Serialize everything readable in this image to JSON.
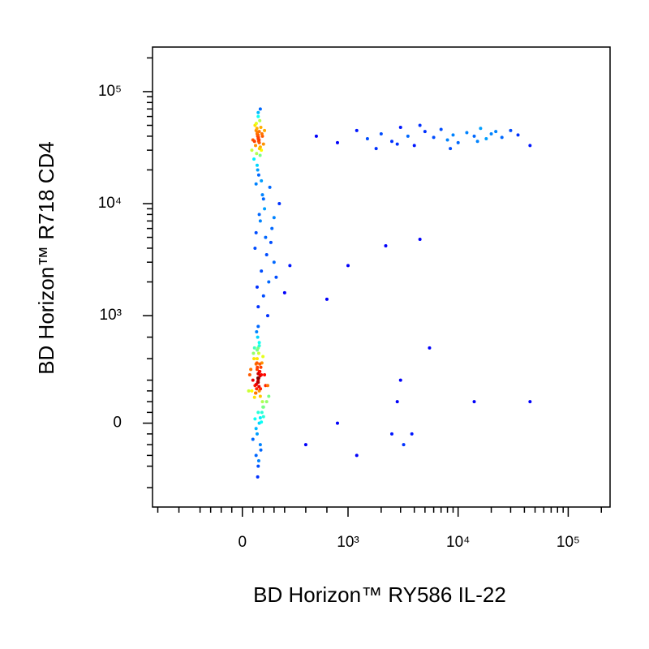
{
  "chart_data": {
    "type": "scatter",
    "x_label": "BD Horizon™ RY586 IL-22",
    "y_label": "BD Horizon™ R718 CD4",
    "xscale": "biexponential",
    "yscale": "biexponential",
    "xlim": [
      -850,
      240000
    ],
    "ylim": [
      -780,
      250000
    ],
    "xticks": [
      0,
      {
        "value": 1000,
        "label": "10³"
      },
      {
        "value": 10000,
        "label": "10⁴"
      },
      {
        "value": 100000,
        "label": "10⁵"
      }
    ],
    "yticks": [
      0,
      {
        "value": 1000,
        "label": "10³"
      },
      {
        "value": 10000,
        "label": "10⁴"
      },
      {
        "value": 100000,
        "label": "10⁵"
      }
    ],
    "xminorticks": [
      -800,
      -600,
      -400,
      -300,
      -200,
      -100,
      100,
      200,
      300,
      400,
      600,
      800,
      2000,
      3000,
      4000,
      5000,
      6000,
      7000,
      8000,
      9000,
      20000,
      30000,
      40000,
      50000,
      60000,
      70000,
      80000,
      90000,
      200000
    ],
    "yminorticks": [
      -600,
      -400,
      -300,
      -200,
      -100,
      100,
      200,
      300,
      400,
      600,
      800,
      2000,
      3000,
      4000,
      5000,
      6000,
      7000,
      8000,
      9000,
      20000,
      30000,
      40000,
      50000,
      60000,
      70000,
      80000,
      90000,
      200000
    ],
    "colormap": "jet",
    "x": [
      150,
      120,
      180,
      160,
      140,
      170,
      130,
      190,
      110,
      200,
      155,
      145,
      165,
      135,
      175,
      125,
      185,
      115,
      195,
      150,
      160,
      140,
      170,
      130,
      100,
      210,
      90,
      220,
      80,
      230,
      150,
      155,
      145,
      160,
      140,
      165,
      135,
      170,
      130,
      175,
      60,
      240,
      70,
      250,
      150,
      148,
      152,
      158,
      142,
      162,
      138,
      168,
      132,
      172,
      128,
      105,
      195,
      115,
      185,
      150,
      145,
      155,
      150,
      140,
      160,
      120,
      180,
      100,
      200,
      150,
      150,
      140,
      160,
      130,
      170,
      120,
      180,
      145,
      155,
      135,
      165,
      125,
      175,
      110,
      190,
      150,
      140,
      160,
      100,
      200,
      152,
      148,
      158,
      142,
      162,
      138,
      168,
      132,
      90,
      210,
      150,
      155,
      145,
      170,
      130,
      115,
      185,
      150,
      200,
      250,
      180,
      300,
      120,
      220,
      280,
      160,
      350,
      190,
      260,
      140,
      230,
      320,
      170,
      210,
      400,
      130,
      270,
      240,
      180,
      300,
      450,
      200,
      700,
      900,
      1200,
      1500,
      2000,
      2500,
      3000,
      3500,
      4000,
      5000,
      6000,
      7000,
      8000,
      9000,
      10000,
      12000,
      14000,
      16000,
      18000,
      20000,
      22000,
      25000,
      30000,
      35000,
      45000,
      1800,
      2800,
      4500,
      8500,
      15000,
      2200,
      4500,
      1000,
      800,
      3000,
      5500,
      2800,
      14000,
      45000,
      2500,
      3200,
      1200,
      3800,
      600,
      900
    ],
    "y": [
      400,
      350,
      450,
      300,
      500,
      250,
      550,
      200,
      600,
      150,
      420,
      380,
      480,
      320,
      520,
      280,
      560,
      240,
      620,
      100,
      0,
      -100,
      50,
      -50,
      400,
      450,
      300,
      350,
      500,
      200,
      700,
      650,
      800,
      750,
      600,
      550,
      850,
      -200,
      -300,
      -250,
      300,
      350,
      450,
      250,
      380,
      420,
      460,
      340,
      520,
      480,
      560,
      440,
      360,
      320,
      280,
      650,
      150,
      700,
      100,
      -400,
      -500,
      -350,
      900,
      680,
      720,
      40,
      10,
      -150,
      60,
      460,
      38000,
      42000,
      35000,
      45000,
      32000,
      50000,
      30000,
      40000,
      36000,
      28000,
      55000,
      33000,
      48000,
      25000,
      40000,
      60000,
      22000,
      44000,
      37000,
      34000,
      39000,
      41000,
      37000,
      43000,
      31000,
      47000,
      27000,
      52000,
      30000,
      45000,
      65000,
      18000,
      20000,
      70000,
      15000,
      36000,
      42000,
      1200,
      1500,
      2000,
      2500,
      3000,
      4000,
      5000,
      6000,
      8000,
      10000,
      12000,
      14000,
      1800,
      3500,
      2200,
      7000,
      9000,
      1600,
      5500,
      4500,
      1000,
      16000,
      7500,
      2800,
      11000,
      40000,
      35000,
      45000,
      38000,
      42000,
      36000,
      48000,
      40000,
      33000,
      44000,
      39000,
      46000,
      37000,
      41000,
      35000,
      43000,
      40000,
      47000,
      38000,
      42000,
      44000,
      39000,
      45000,
      41000,
      33000,
      31000,
      34000,
      50000,
      31000,
      36000,
      4200,
      4800,
      2800,
      1400,
      400,
      700,
      200,
      200,
      200,
      -100,
      -200,
      -300,
      -100,
      -200,
      0
    ]
  }
}
